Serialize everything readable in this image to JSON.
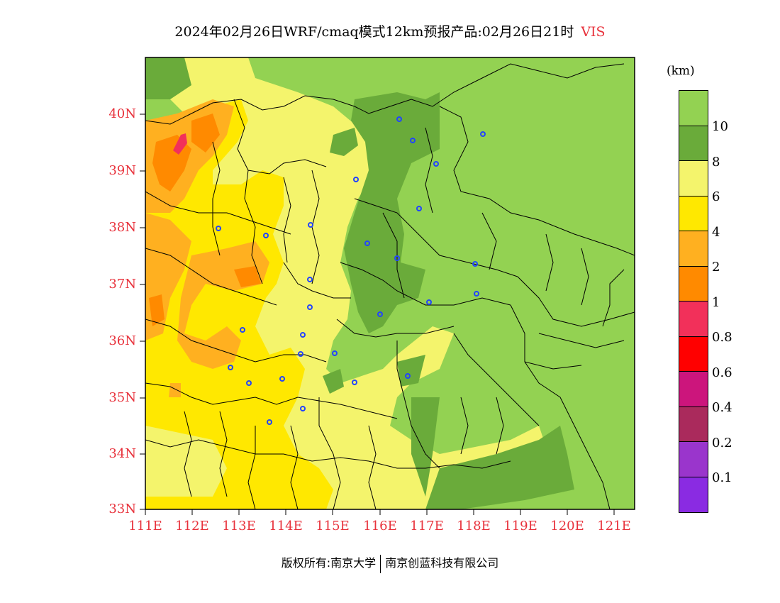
{
  "title": {
    "main": "2024年02月26日WRF/cmaq模式12km预报产品:02月26日21时",
    "variable": "VIS"
  },
  "map": {
    "lat_labels": [
      "40N",
      "39N",
      "38N",
      "37N",
      "36N",
      "35N",
      "34N",
      "33N"
    ],
    "lon_labels": [
      "111E",
      "112E",
      "113E",
      "114E",
      "115E",
      "116E",
      "117E",
      "118E",
      "119E",
      "120E",
      "121E"
    ],
    "colors": {
      "gt10": "#93d252",
      "8_10": "#6aab3a",
      "6_8": "#f4f46c",
      "4_6": "#ffe800",
      "2_4": "#ffb020",
      "1_2": "#ff8a00",
      "0.8_1": "#f2305a",
      "0.6_0.8": "#ff0000",
      "0.4_0.6": "#cc157c",
      "0.2_0.4": "#aa2a5c",
      "0.1_0.2": "#9a35cc",
      "lt0.1": "#8a2be2"
    },
    "station_marker_color": "#2244ff",
    "station_icon": "circle-station-icon"
  },
  "colorbar": {
    "unit": "(km)",
    "labels": [
      "10",
      "8",
      "6",
      "4",
      "2",
      "1",
      "0.8",
      "0.6",
      "0.4",
      "0.2",
      "0.1"
    ],
    "colors": [
      "#93d252",
      "#6aab3a",
      "#f4f46c",
      "#ffe800",
      "#ffb020",
      "#ff8a00",
      "#f2305a",
      "#ff0000",
      "#cc157c",
      "#aa2a5c",
      "#9a35cc",
      "#8a2be2"
    ]
  },
  "footer": {
    "copyright": "版权所有:南京大学",
    "company": "南京创蓝科技有限公司"
  }
}
